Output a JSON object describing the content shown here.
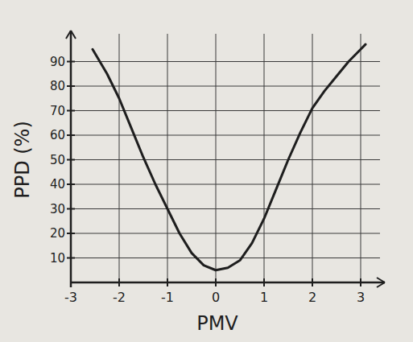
{
  "chart_data": {
    "type": "line",
    "x_label": "PMV",
    "y_label": "PPD (%)",
    "x": [
      -2.55,
      -2.25,
      -2,
      -1.75,
      -1.5,
      -1.25,
      -1,
      -0.75,
      -0.5,
      -0.25,
      0,
      0.25,
      0.5,
      0.75,
      1,
      1.25,
      1.5,
      1.75,
      2,
      2.25,
      2.5,
      2.75,
      3,
      3.1
    ],
    "values": [
      95,
      85,
      75,
      63,
      51,
      40,
      30,
      20,
      12,
      7,
      5,
      6,
      9,
      16,
      26,
      38,
      50,
      61,
      71,
      78,
      84,
      90,
      95,
      97
    ],
    "color": "#1e1e1e",
    "xlim": [
      -3,
      3.4
    ],
    "ylim": [
      0,
      100
    ],
    "xticks": [
      -3,
      -2,
      -1,
      0,
      1,
      2,
      3
    ],
    "yticks": [
      10,
      20,
      30,
      40,
      50,
      60,
      70,
      80,
      90
    ],
    "grid": true
  }
}
